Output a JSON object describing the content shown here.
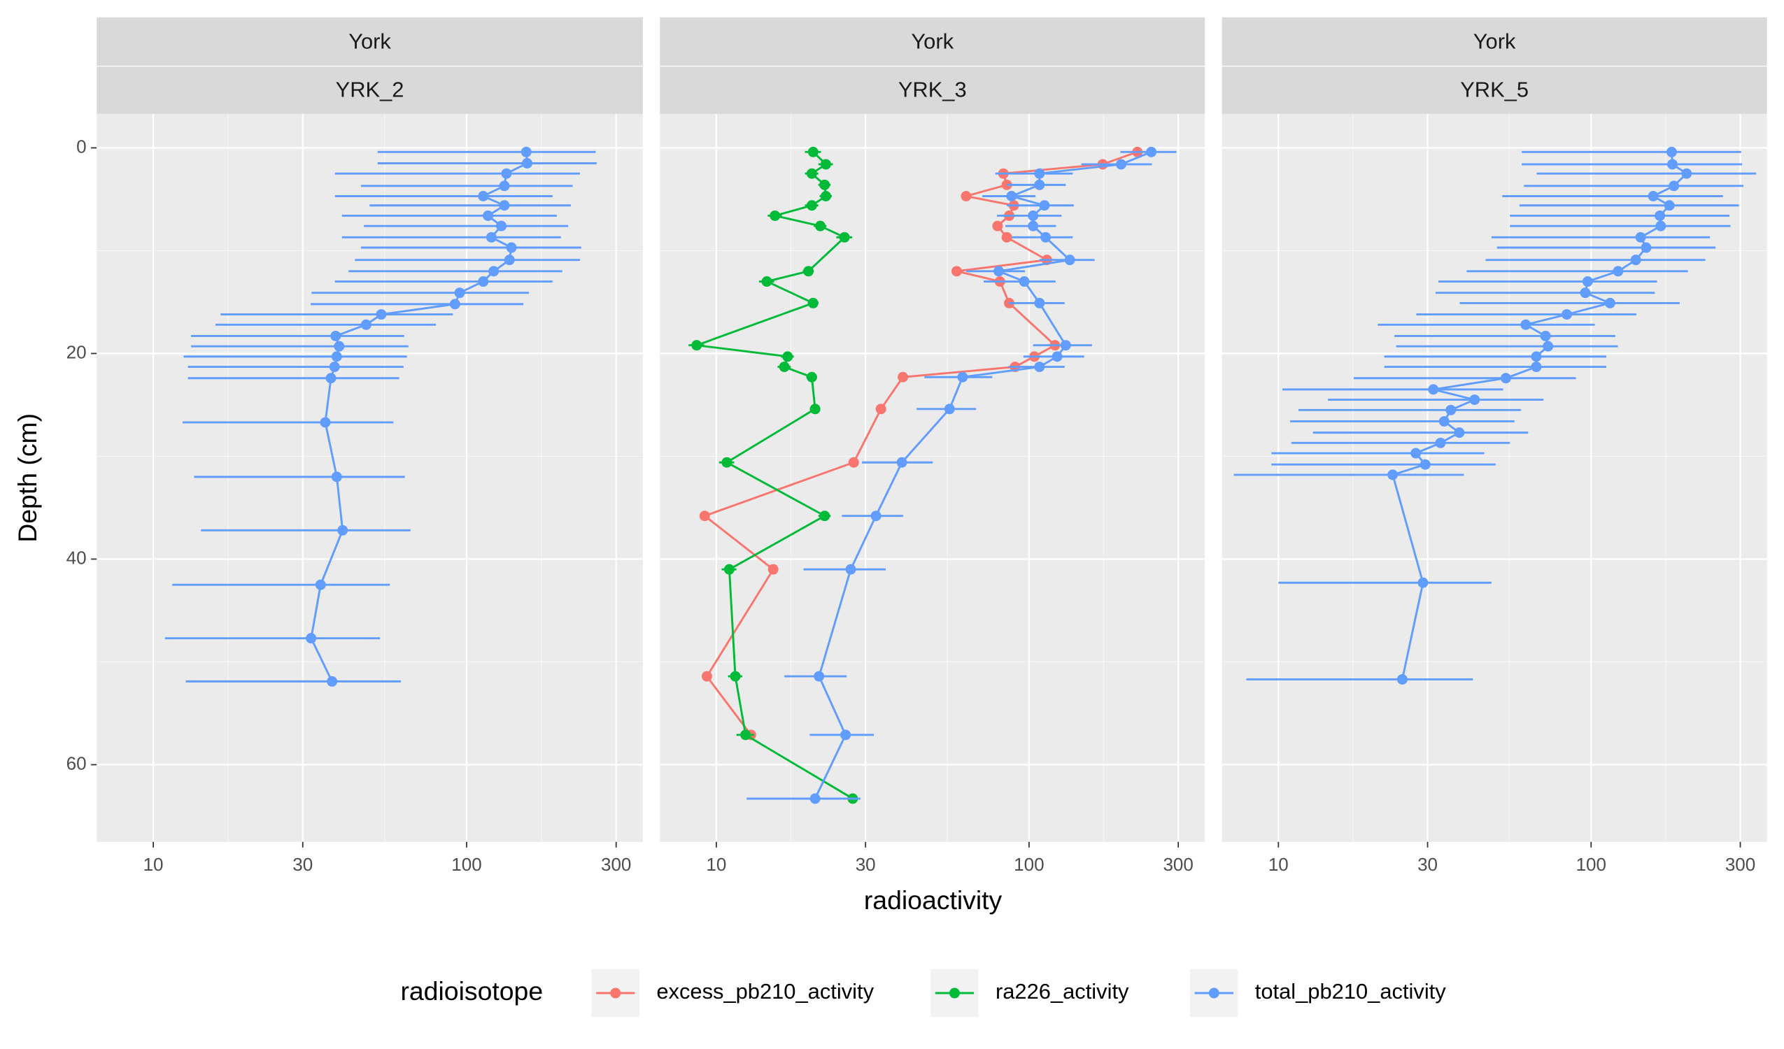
{
  "chart_data": {
    "type": "line",
    "x_label": "radioactivity",
    "y_label": "Depth (cm)",
    "log_x": true,
    "y_reversed": true,
    "grid": true,
    "xlim": [
      6.6,
      365
    ],
    "xticks": [
      10,
      30,
      100,
      300
    ],
    "ylim": [
      -3.3,
      67.5
    ],
    "yticks": [
      0,
      20,
      40,
      60
    ],
    "legend": {
      "position": "bottom",
      "title": "radioisotope",
      "entries": [
        {
          "name": "excess_pb210_activity",
          "color": "#f8766d"
        },
        {
          "name": "ra226_activity",
          "color": "#00ba38"
        },
        {
          "name": "total_pb210_activity",
          "color": "#619cff"
        }
      ]
    },
    "facets": [
      {
        "strip": [
          "York",
          "YRK_2"
        ],
        "series": [
          null,
          null,
          {
            "depth": [
              0.4,
              1.5,
              2.5,
              3.7,
              4.7,
              5.6,
              6.6,
              7.6,
              8.7,
              9.7,
              10.9,
              12.0,
              13.0,
              14.1,
              15.2,
              16.2,
              17.2,
              18.3,
              19.3,
              20.3,
              21.3,
              22.4,
              26.7,
              32.0,
              37.2,
              42.5,
              47.7,
              51.9
            ],
            "values": [
              155,
              156,
              134,
              132,
              113,
              132,
              117,
              129,
              120,
              139,
              137,
              122,
              113,
              95,
              91.8,
              53.4,
              47.8,
              38.2,
              39.2,
              38.5,
              37.9,
              36.9,
              35.4,
              38.5,
              40.2,
              34.2,
              31.9,
              37.2
            ],
            "errors": [
              103,
              104,
              96,
              86,
              75,
              83,
              77,
              82,
              80,
              93,
              93,
              80,
              75,
              63,
              60,
              37,
              32,
              25,
              26,
              26,
              25,
              24,
              23,
              25,
              26,
              22.7,
              21,
              24.5
            ]
          }
        ]
      },
      {
        "strip": [
          "York",
          "YRK_3"
        ],
        "series": [
          {
            "depth": [
              0.4,
              1.6,
              2.5,
              3.6,
              4.7,
              5.6,
              6.6,
              7.6,
              8.7,
              10.9,
              12.0,
              13.0,
              15.1,
              19.2,
              20.3,
              21.3,
              22.3,
              25.4,
              30.6,
              35.8,
              41.0,
              51.4,
              57.1
            ],
            "values": [
              222,
              172,
              82.8,
              84.9,
              62.9,
              89.4,
              86.4,
              79.3,
              84.9,
              114,
              58.7,
              80.7,
              86.4,
              121,
              104,
              90.2,
              39.5,
              33.6,
              27.5,
              9.18,
              15.2,
              9.33,
              12.9
            ]
          },
          {
            "depth": [
              0.4,
              1.6,
              2.5,
              3.6,
              4.7,
              5.6,
              6.6,
              7.6,
              8.7,
              12.0,
              13.0,
              15.1,
              19.2,
              20.3,
              21.3,
              22.3,
              25.4,
              30.6,
              35.8,
              41.0,
              51.4,
              57.1,
              63.3
            ],
            "values": [
              20.4,
              22.4,
              20.2,
              22.2,
              22.4,
              20.2,
              15.4,
              21.5,
              25.7,
              19.7,
              14.5,
              20.4,
              8.65,
              16.9,
              16.5,
              20.2,
              20.7,
              10.8,
              22.2,
              11.0,
              11.5,
              12.4,
              27.3
            ],
            "errors": [
              1.2,
              1.2,
              1.0,
              1.0,
              1.0,
              1.0,
              0.8,
              1.0,
              1.5,
              0.8,
              0.8,
              0.8,
              0.5,
              0.8,
              0.8,
              0.8,
              0.8,
              0.6,
              1.0,
              0.6,
              0.6,
              0.8,
              1.4
            ]
          },
          {
            "depth": [
              0.4,
              1.6,
              2.5,
              3.6,
              4.7,
              5.6,
              6.6,
              7.6,
              8.7,
              10.9,
              12.0,
              13.0,
              15.1,
              19.2,
              20.3,
              21.3,
              22.3,
              25.4,
              30.6,
              35.8,
              41.0,
              51.4,
              57.1,
              63.3
            ],
            "values": [
              246,
              197,
              108,
              108,
              87.9,
              112,
              103,
              103,
              113,
              135,
              80,
              96.6,
              108,
              131,
              123,
              108,
              61.3,
              55.7,
              39.2,
              32.4,
              26.9,
              21.3,
              25.9,
              20.7
            ],
            "errors": [
              50,
              50,
              30,
              23,
              17,
              27,
              24,
              19,
              25,
              27,
              17,
              25,
              22,
              28,
              27,
              22,
              15,
              12,
              10,
              7.2,
              7.9,
              4.8,
              6,
              8.2
            ]
          }
        ]
      },
      {
        "strip": [
          "York",
          "YRK_5"
        ],
        "series": [
          null,
          null,
          {
            "depth": [
              0.4,
              1.6,
              2.5,
              3.7,
              4.7,
              5.6,
              6.6,
              7.6,
              8.7,
              9.7,
              10.9,
              12.0,
              13.0,
              14.1,
              15.1,
              16.2,
              17.2,
              18.3,
              19.3,
              20.3,
              21.3,
              22.4,
              23.5,
              24.5,
              25.5,
              26.6,
              27.7,
              28.7,
              29.7,
              30.8,
              31.8,
              42.3,
              51.7
            ],
            "values": [
              181,
              182,
              202,
              184,
              158,
              178,
              166,
              167,
              144,
              150,
              139,
              122,
              97.5,
              95.8,
              115,
              83.6,
              61.8,
              71.5,
              72.8,
              66.8,
              66.8,
              53.4,
              31.3,
              42.4,
              35.6,
              33.9,
              37.9,
              33.0,
              27.5,
              29.5,
              23.2,
              29.0,
              24.9
            ],
            "errors": [
              121,
              122,
              135,
              123,
              106,
              119,
              111,
              112,
              96,
              100,
              93,
              82,
              65,
              64,
              77,
              56,
              41,
              48,
              49,
              45,
              45,
              36,
              21,
              28,
              24,
              23,
              25,
              22,
              18,
              20,
              16,
              19,
              17
            ]
          }
        ]
      }
    ]
  }
}
